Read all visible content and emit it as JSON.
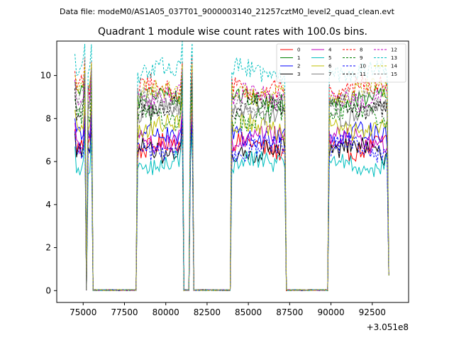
{
  "suptitle": "Data file: modeM0/AS1A05_037T01_9000003140_21257cztM0_level2_quad_clean.evt",
  "chart_data": {
    "type": "line",
    "title": "Quadrant 1 module wise count rates with 100.0s bins.",
    "xlabel": "",
    "ylabel": "",
    "x_offset_label": "+3.051e8",
    "xlim": [
      73400,
      94700
    ],
    "ylim": [
      -0.55,
      11.6
    ],
    "xticks": [
      75000,
      77500,
      80000,
      82500,
      85000,
      87500,
      90000,
      92500
    ],
    "xtick_labels": [
      "75000",
      "77500",
      "80000",
      "82500",
      "85000",
      "87500",
      "90000",
      "92500"
    ],
    "yticks": [
      0,
      2,
      4,
      6,
      8,
      10
    ],
    "ytick_labels": [
      "0",
      "2",
      "4",
      "6",
      "8",
      "10"
    ],
    "bin_size_s": 100,
    "active_segments": [
      [
        74500,
        75100
      ],
      [
        75300,
        75500
      ],
      [
        78300,
        81000
      ],
      [
        81500,
        81600
      ],
      [
        84000,
        87200
      ],
      [
        89900,
        93400
      ]
    ],
    "legend_location": "upper-right",
    "series": [
      {
        "name": "0",
        "color": "#ff0000",
        "style": "solid",
        "level": 6.7
      },
      {
        "name": "1",
        "color": "#008000",
        "style": "solid",
        "level": 8.9
      },
      {
        "name": "2",
        "color": "#0000ff",
        "style": "solid",
        "level": 7.2
      },
      {
        "name": "3",
        "color": "#000000",
        "style": "solid",
        "level": 6.5
      },
      {
        "name": "4",
        "color": "#bf00bf",
        "style": "solid",
        "level": 7.0
      },
      {
        "name": "5",
        "color": "#00bfbf",
        "style": "solid",
        "level": 5.9
      },
      {
        "name": "6",
        "color": "#bfbf00",
        "style": "solid",
        "level": 7.6
      },
      {
        "name": "7",
        "color": "#808080",
        "style": "solid",
        "level": 8.3
      },
      {
        "name": "8",
        "color": "#ff0000",
        "style": "dashed",
        "level": 9.4
      },
      {
        "name": "9",
        "color": "#008000",
        "style": "dashed",
        "level": 8.1
      },
      {
        "name": "10",
        "color": "#0000ff",
        "style": "dashed",
        "level": 6.6
      },
      {
        "name": "11",
        "color": "#000000",
        "style": "dashed",
        "level": 8.6
      },
      {
        "name": "12",
        "color": "#bf00bf",
        "style": "dashed",
        "level": 9.0
      },
      {
        "name": "13",
        "color": "#00bfbf",
        "style": "dashed",
        "level": 10.2
      },
      {
        "name": "14",
        "color": "#bfbf00",
        "style": "dashed",
        "level": 9.2
      },
      {
        "name": "15",
        "color": "#808080",
        "style": "dashed",
        "level": 8.8
      }
    ]
  }
}
